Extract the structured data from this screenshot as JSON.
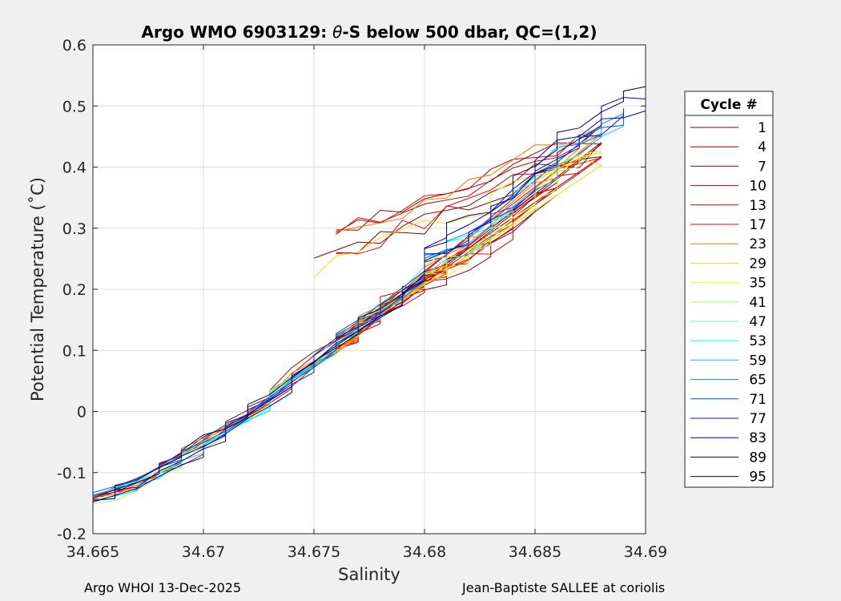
{
  "chart_data": {
    "type": "line",
    "title_prefix": "Argo WMO 6903129: ",
    "title_symbol": "θ",
    "title_suffix": "-S below 500 dbar,  QC=(1,2)",
    "xlabel": "Salinity",
    "ylabel": "Potential Temperature (˚C)",
    "xlim": [
      34.665,
      34.69
    ],
    "ylim": [
      -0.2,
      0.6
    ],
    "xticks": [
      34.665,
      34.67,
      34.675,
      34.68,
      34.685,
      34.69
    ],
    "xtick_labels": [
      "34.665",
      "34.67",
      "34.675",
      "34.68",
      "34.685",
      "34.69"
    ],
    "yticks": [
      -0.2,
      -0.1,
      0,
      0.1,
      0.2,
      0.3,
      0.4,
      0.5,
      0.6
    ],
    "ytick_labels": [
      "-0.2",
      "-0.1",
      "0",
      "0.1",
      "0.2",
      "0.3",
      "0.4",
      "0.5",
      "0.6"
    ],
    "grid": true,
    "legend_title": "Cycle #",
    "legend_position": "right-outside",
    "legend_entries": [
      {
        "label": "1",
        "color": "#800000"
      },
      {
        "label": "4",
        "color": "#930000"
      },
      {
        "label": "7",
        "color": "#a60000"
      },
      {
        "label": "10",
        "color": "#c20000"
      },
      {
        "label": "13",
        "color": "#d60000"
      },
      {
        "label": "17",
        "color": "#f00000"
      },
      {
        "label": "23",
        "color": "#ff7000"
      },
      {
        "label": "29",
        "color": "#ffd600"
      },
      {
        "label": "35",
        "color": "#eaff14"
      },
      {
        "label": "41",
        "color": "#a6ff59"
      },
      {
        "label": "47",
        "color": "#59ffa6"
      },
      {
        "label": "53",
        "color": "#14ffea"
      },
      {
        "label": "59",
        "color": "#00d6ff"
      },
      {
        "label": "65",
        "color": "#0090ff"
      },
      {
        "label": "71",
        "color": "#0050ff"
      },
      {
        "label": "77",
        "color": "#0010ff"
      },
      {
        "label": "83",
        "color": "#0000c8"
      },
      {
        "label": "89",
        "color": "#00009b"
      },
      {
        "label": "95",
        "color": "#000070"
      }
    ],
    "envelope": {
      "lower_branch": {
        "salinity": [
          34.665,
          34.667,
          34.669,
          34.671,
          34.673,
          34.675,
          34.677,
          34.6785,
          34.6795,
          34.68
        ],
        "theta": [
          -0.145,
          -0.118,
          -0.075,
          -0.03,
          0.02,
          0.082,
          0.14,
          0.178,
          0.205,
          0.225
        ]
      },
      "main_band": {
        "salinity": [
          34.68,
          34.681,
          34.682,
          34.683,
          34.684,
          34.685,
          34.686,
          34.687,
          34.688,
          34.689,
          34.69
        ],
        "theta": [
          0.225,
          0.245,
          0.265,
          0.285,
          0.32,
          0.36,
          0.395,
          0.42,
          0.44,
          0.46,
          0.48
        ]
      },
      "warm_branch": {
        "salinity": [
          34.6745,
          34.676,
          34.678,
          34.68,
          34.682,
          34.684,
          34.686,
          34.688
        ],
        "theta": [
          0.25,
          0.278,
          0.305,
          0.33,
          0.36,
          0.39,
          0.42,
          0.445
        ]
      }
    }
  },
  "footer": {
    "left": "Argo WHOI 13-Dec-2025",
    "right": "Jean-Baptiste SALLEE at coriolis"
  }
}
